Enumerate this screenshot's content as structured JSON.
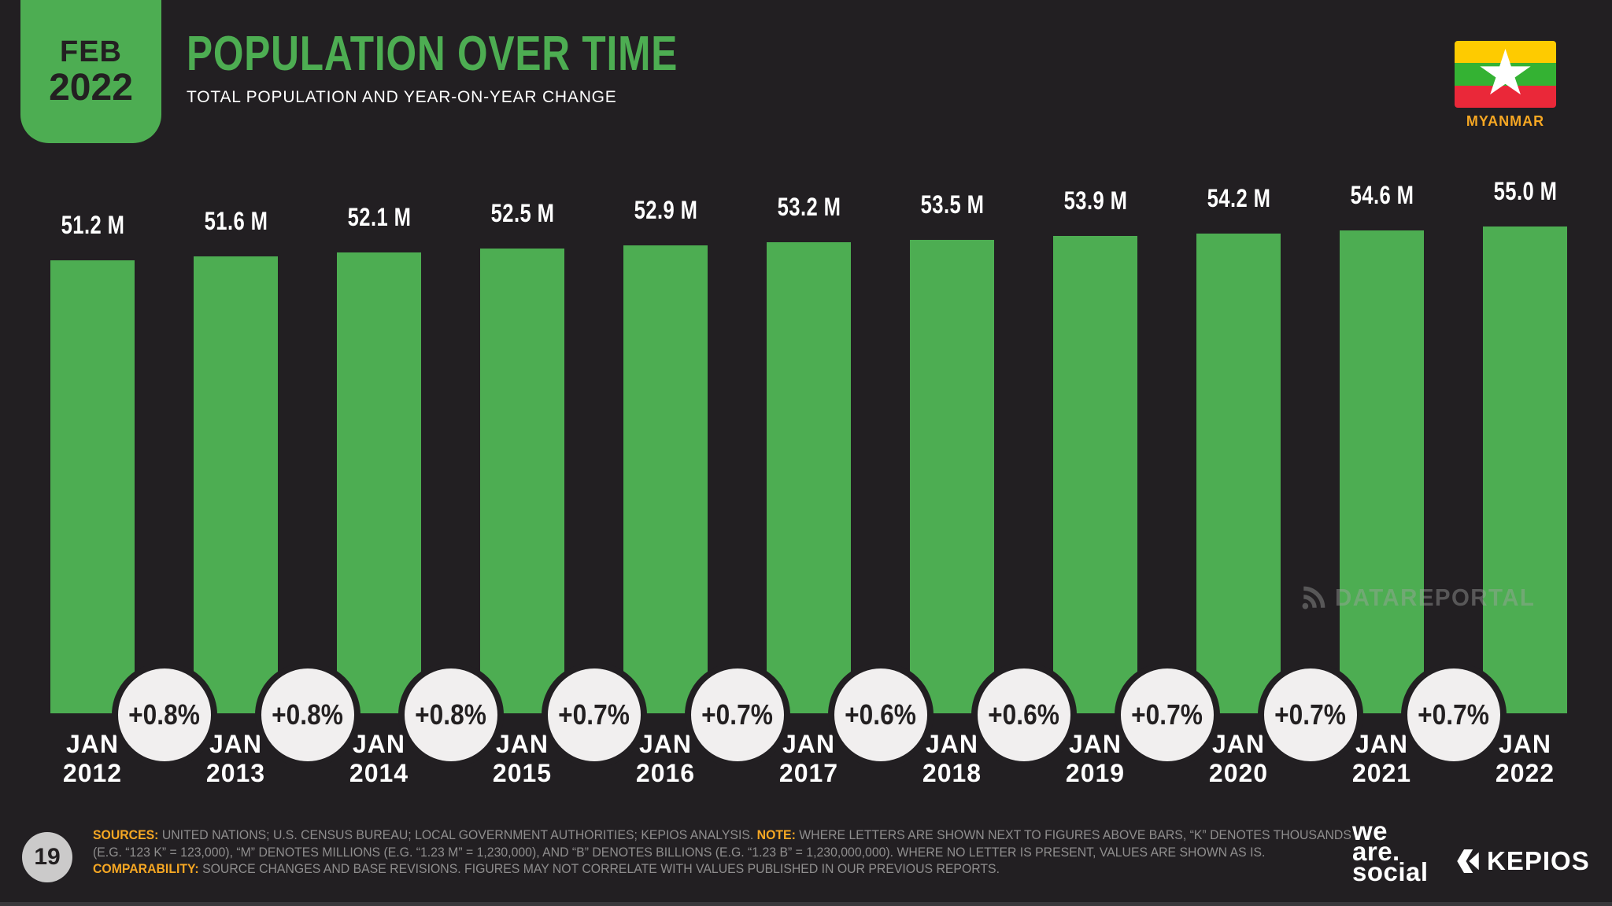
{
  "meta": {
    "date_badge": {
      "month": "FEB",
      "year": "2022"
    }
  },
  "header": {
    "title": "POPULATION OVER TIME",
    "subtitle": "TOTAL POPULATION AND YEAR-ON-YEAR CHANGE",
    "country": "MYANMAR"
  },
  "chart_data": {
    "type": "bar",
    "title": "POPULATION OVER TIME",
    "subtitle": "TOTAL POPULATION AND YEAR-ON-YEAR CHANGE",
    "unit": "millions of people",
    "categories": [
      "JAN 2012",
      "JAN 2013",
      "JAN 2014",
      "JAN 2015",
      "JAN 2016",
      "JAN 2017",
      "JAN 2018",
      "JAN 2019",
      "JAN 2020",
      "JAN 2021",
      "JAN 2022"
    ],
    "values": [
      51.2,
      51.6,
      52.1,
      52.5,
      52.9,
      53.2,
      53.5,
      53.9,
      54.2,
      54.6,
      55.0
    ],
    "value_labels": [
      "51.2 M",
      "51.6 M",
      "52.1 M",
      "52.5 M",
      "52.9 M",
      "53.2 M",
      "53.5 M",
      "53.9 M",
      "54.2 M",
      "54.6 M",
      "55.0 M"
    ],
    "yoy_change_labels": [
      "+0.8%",
      "+0.8%",
      "+0.8%",
      "+0.7%",
      "+0.7%",
      "+0.6%",
      "+0.6%",
      "+0.7%",
      "+0.7%",
      "+0.7%"
    ],
    "ylim": [
      0,
      55.0
    ],
    "grid": false,
    "legend": "none",
    "bar_color": "#4DAD52"
  },
  "watermark": {
    "text": "DATAREPORTAL"
  },
  "footer": {
    "page_number": "19",
    "sources_label": "SOURCES:",
    "sources_text": " UNITED NATIONS; U.S. CENSUS BUREAU; LOCAL GOVERNMENT AUTHORITIES; KEPIOS ANALYSIS. ",
    "note_label": "NOTE:",
    "note_text": " WHERE LETTERS ARE SHOWN NEXT TO FIGURES ABOVE BARS, “K” DENOTES THOUSANDS",
    "line2": "(E.G. “123 K” = 123,000), “M” DENOTES MILLIONS (E.G. “1.23 M” = 1,230,000), AND “B” DENOTES BILLIONS (E.G. “1.23 B” = 1,230,000,000). WHERE NO LETTER IS PRESENT, VALUES ARE SHOWN AS IS.",
    "comparability_label": "COMPARABILITY:",
    "comparability_text": " SOURCE CHANGES AND BASE REVISIONS. FIGURES MAY NOT CORRELATE WITH VALUES PUBLISHED IN OUR PREVIOUS REPORTS.",
    "brand_we_are_social": [
      "we",
      "are.",
      "social"
    ],
    "brand_kepios": "KEPIOS"
  },
  "colors": {
    "background": "#221F22",
    "accent_green": "#4DAD52",
    "accent_orange": "#F6A723",
    "dark_text": "#232021",
    "circle_fill": "#F1EFEF",
    "flag_yellow": "#FECB00",
    "flag_green": "#34B233",
    "flag_red": "#EA2839"
  }
}
